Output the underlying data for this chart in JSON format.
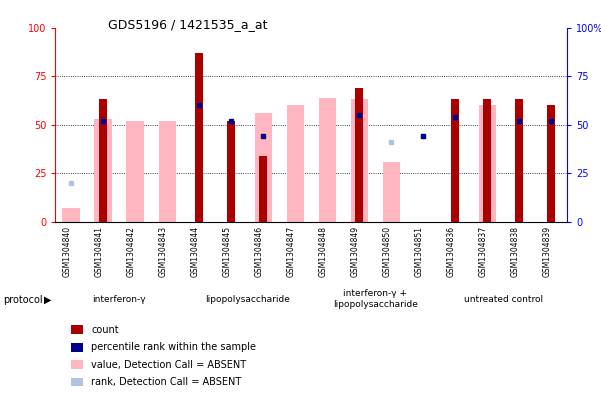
{
  "title": "GDS5196 / 1421535_a_at",
  "samples": [
    "GSM1304840",
    "GSM1304841",
    "GSM1304842",
    "GSM1304843",
    "GSM1304844",
    "GSM1304845",
    "GSM1304846",
    "GSM1304847",
    "GSM1304848",
    "GSM1304849",
    "GSM1304850",
    "GSM1304851",
    "GSM1304836",
    "GSM1304837",
    "GSM1304838",
    "GSM1304839"
  ],
  "count_values": [
    0,
    63,
    0,
    0,
    87,
    52,
    34,
    0,
    0,
    69,
    0,
    0,
    63,
    63,
    63,
    60
  ],
  "rank_values": [
    null,
    52,
    null,
    null,
    60,
    52,
    44,
    null,
    null,
    55,
    null,
    44,
    54,
    null,
    52,
    52
  ],
  "absent_value_values": [
    7,
    53,
    52,
    52,
    null,
    null,
    56,
    60,
    64,
    63,
    31,
    null,
    null,
    60,
    null,
    null
  ],
  "absent_rank_values": [
    20,
    null,
    null,
    null,
    null,
    null,
    null,
    null,
    null,
    null,
    41,
    44,
    null,
    null,
    null,
    null
  ],
  "group_starts": [
    0,
    4,
    8,
    12
  ],
  "group_ends": [
    4,
    8,
    12,
    16
  ],
  "group_labels": [
    "interferon-γ",
    "lipopolysaccharide",
    "interferon-γ +\nlipopolysaccharide",
    "untreated control"
  ],
  "ylim": [
    0,
    100
  ],
  "count_color": "#AA0000",
  "rank_color": "#00008B",
  "absent_value_color": "#FFB6C1",
  "absent_rank_color": "#B0C4DE",
  "yticks": [
    0,
    25,
    50,
    75,
    100
  ],
  "ytick_labels_left": [
    "0",
    "25",
    "50",
    "75",
    "100"
  ],
  "ytick_labels_right": [
    "0",
    "25",
    "50",
    "75",
    "100%"
  ],
  "group_bg_color": "#90EE90",
  "label_bg_color": "#D3D3D3"
}
